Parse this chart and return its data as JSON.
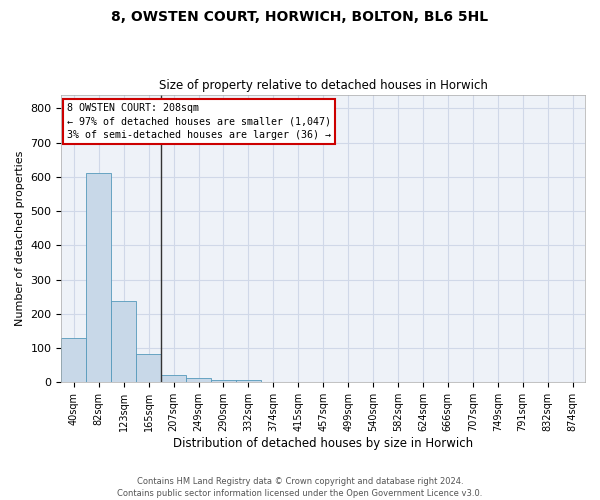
{
  "title": "8, OWSTEN COURT, HORWICH, BOLTON, BL6 5HL",
  "subtitle": "Size of property relative to detached houses in Horwich",
  "xlabel": "Distribution of detached houses by size in Horwich",
  "ylabel": "Number of detached properties",
  "bar_color": "#c8d8e8",
  "bar_edge_color": "#5599bb",
  "grid_color": "#d0d8e8",
  "background_color": "#eef2f8",
  "categories": [
    "40sqm",
    "82sqm",
    "123sqm",
    "165sqm",
    "207sqm",
    "249sqm",
    "290sqm",
    "332sqm",
    "374sqm",
    "415sqm",
    "457sqm",
    "499sqm",
    "540sqm",
    "582sqm",
    "624sqm",
    "666sqm",
    "707sqm",
    "749sqm",
    "791sqm",
    "832sqm",
    "874sqm"
  ],
  "values": [
    130,
    610,
    238,
    82,
    22,
    12,
    8,
    8,
    0,
    0,
    0,
    0,
    0,
    0,
    0,
    0,
    0,
    0,
    0,
    0,
    0
  ],
  "ylim": [
    0,
    840
  ],
  "yticks": [
    0,
    100,
    200,
    300,
    400,
    500,
    600,
    700,
    800
  ],
  "property_line_index": 3.5,
  "annotation_text": "8 OWSTEN COURT: 208sqm\n← 97% of detached houses are smaller (1,047)\n3% of semi-detached houses are larger (36) →",
  "annotation_box_color": "#ffffff",
  "annotation_box_edge": "#cc0000",
  "footer_line1": "Contains HM Land Registry data © Crown copyright and database right 2024.",
  "footer_line2": "Contains public sector information licensed under the Open Government Licence v3.0."
}
